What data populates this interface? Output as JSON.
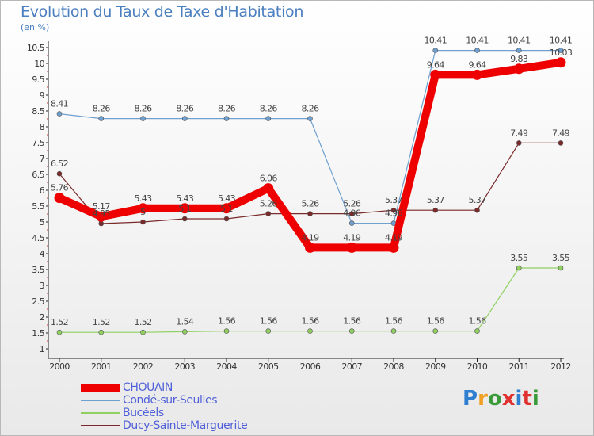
{
  "title": "Evolution du Taux de Taxe d'Habitation",
  "unit": "(en %)",
  "logo": {
    "text": "Proxiti",
    "letter_colors": [
      "#2f7fd0",
      "#f0a020",
      "#3a9a3a",
      "#e03030",
      "#2f7fd0",
      "#e03030",
      "#3a9a3a"
    ]
  },
  "chart_data": {
    "type": "line",
    "title": "Evolution du Taux de Taxe d'Habitation",
    "xlabel": "",
    "ylabel": "(en %)",
    "x": [
      "2000",
      "2001",
      "2002",
      "2003",
      "2004",
      "2005",
      "2006",
      "2007",
      "2008",
      "2009",
      "2010",
      "2011",
      "2012"
    ],
    "ylim": [
      1,
      10.5
    ],
    "yticks": [
      "1",
      "1.5",
      "2",
      "2.5",
      "3",
      "3.5",
      "4",
      "4.5",
      "5",
      "5.5",
      "6",
      "6.5",
      "7",
      "7.5",
      "8",
      "8.5",
      "9",
      "9.5",
      "10",
      "10.5"
    ],
    "grid": false,
    "legend_position": "bottom-left",
    "series": [
      {
        "name": "CHOUAIN",
        "color": "#ee0000",
        "values": [
          5.76,
          5.17,
          5.43,
          5.43,
          5.43,
          6.06,
          4.19,
          4.19,
          4.19,
          9.64,
          9.64,
          9.83,
          10.03
        ],
        "labels": [
          "5.76",
          "5.17",
          "5.43",
          "5.43",
          "5.43",
          "6.06",
          "4.19",
          "4.19",
          "4.19",
          "9.64",
          "9.64",
          "9.83",
          "10.03"
        ]
      },
      {
        "name": "Condé-sur-Seulles",
        "color": "#6fa0cf",
        "values": [
          8.41,
          8.26,
          8.26,
          8.26,
          8.26,
          8.26,
          8.26,
          4.96,
          4.96,
          10.41,
          10.41,
          10.41,
          10.41
        ],
        "labels": [
          "8.41",
          "8.26",
          "8.26",
          "8.26",
          "8.26",
          "8.26",
          "8.26",
          "4.96",
          "4.96",
          "10.41",
          "10.41",
          "10.41",
          "10.41"
        ]
      },
      {
        "name": "Bucéels",
        "color": "#8fd060",
        "values": [
          1.52,
          1.52,
          1.52,
          1.54,
          1.56,
          1.56,
          1.56,
          1.56,
          1.56,
          1.56,
          1.56,
          3.55,
          3.55
        ],
        "labels": [
          "1.52",
          "1.52",
          "1.52",
          "1.54",
          "1.56",
          "1.56",
          "1.56",
          "1.56",
          "1.56",
          "1.56",
          "1.56",
          "3.55",
          "3.55"
        ]
      },
      {
        "name": "Ducy-Sainte-Marguerite",
        "color": "#7a2a2a",
        "values": [
          6.52,
          4.95,
          5.0,
          5.1,
          5.1,
          5.26,
          5.26,
          5.26,
          5.37,
          5.37,
          5.37,
          7.49,
          7.49
        ],
        "labels": [
          "6.52",
          "4.95",
          "5",
          "5.1",
          "5.1",
          "5.26",
          "5.26",
          "5.26",
          "5.37",
          "5.37",
          "5.37",
          "7.49",
          "7.49"
        ]
      }
    ]
  }
}
